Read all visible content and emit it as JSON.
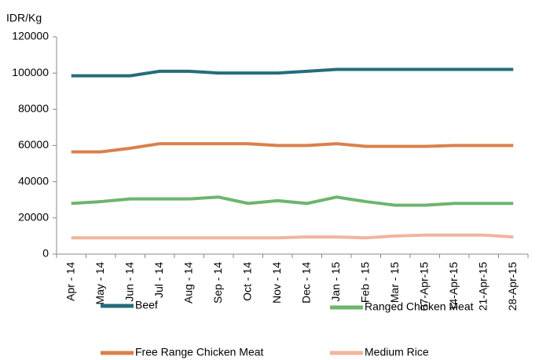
{
  "chart_data": {
    "type": "line",
    "y_label": "IDR/Kg",
    "categories": [
      "Apr - 14",
      "May - 14",
      "Jun - 14",
      "Jul - 14",
      "Aug - 14",
      "Sep - 14",
      "Oct - 14",
      "Nov - 14",
      "Dec - 14",
      "Jan - 15",
      "Feb - 15",
      "Mar - 15",
      "07-Apr-15",
      "14-Apr-15",
      "21-Apr-15",
      "28-Apr-15"
    ],
    "series": [
      {
        "name": "Beef",
        "color": "#256c7b",
        "values": [
          98500,
          98500,
          98500,
          101000,
          101000,
          100000,
          100000,
          100000,
          101000,
          102000,
          102000,
          102000,
          102000,
          102000,
          102000,
          102000
        ]
      },
      {
        "name": "Ranged Chicken Meat",
        "color": "#6db56d",
        "values": [
          28000,
          29000,
          30500,
          30500,
          30500,
          31500,
          28000,
          29500,
          28000,
          31500,
          29000,
          27000,
          27000,
          28000,
          28000,
          28000
        ]
      },
      {
        "name": "Free Range Chicken Meat",
        "color": "#d9814b",
        "values": [
          56500,
          56500,
          58500,
          61000,
          61000,
          61000,
          61000,
          60000,
          60000,
          61000,
          59500,
          59500,
          59500,
          60000,
          60000,
          60000
        ]
      },
      {
        "name": "Medium Rice",
        "color": "#f1b59c",
        "values": [
          9000,
          9000,
          9000,
          9000,
          9000,
          9000,
          9000,
          9000,
          9500,
          9500,
          9000,
          10000,
          10500,
          10500,
          10500,
          9500
        ]
      }
    ],
    "ylim": [
      0,
      120000
    ],
    "yticks": [
      0,
      20000,
      40000,
      60000,
      80000,
      100000,
      120000
    ],
    "grid": false
  }
}
